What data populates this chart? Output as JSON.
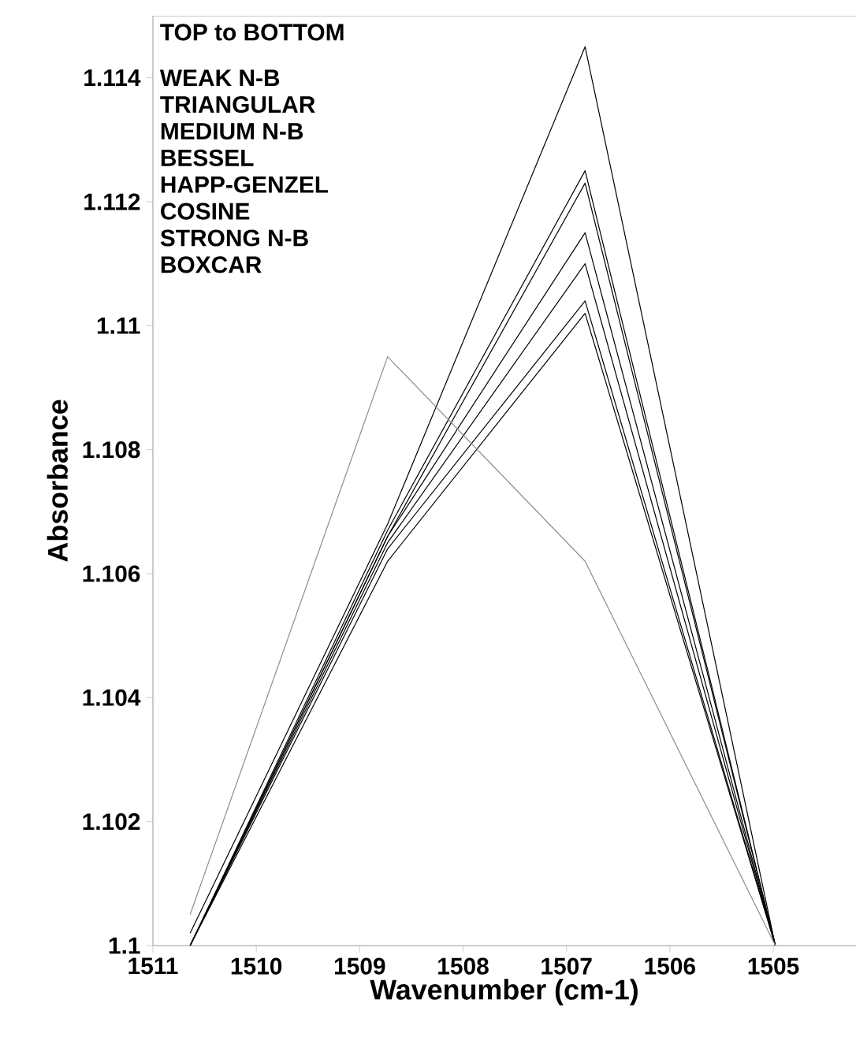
{
  "chart_data": {
    "type": "line",
    "xlabel": "Wavenumber (cm-1)",
    "ylabel": "Absorbance",
    "annotations": [
      "TOP to BOTTOM",
      "WEAK N-B",
      "TRIANGULAR",
      "MEDIUM N-B",
      "BESSEL",
      "HAPP-GENZEL",
      "COSINE",
      "STRONG N-B",
      "BOXCAR"
    ],
    "x": [
      1510.64,
      1508.73,
      1506.82,
      1504.98
    ],
    "series": [
      {
        "color": "#000000",
        "values": [
          1.1002,
          1.1068,
          1.1145,
          1.1
        ]
      },
      {
        "color": "#000000",
        "values": [
          1.1,
          1.1067,
          1.1125,
          1.1
        ]
      },
      {
        "color": "#000000",
        "values": [
          1.1,
          1.1066,
          1.1123,
          1.1
        ]
      },
      {
        "color": "#000000",
        "values": [
          1.1,
          1.1066,
          1.1115,
          1.1
        ]
      },
      {
        "color": "#000000",
        "values": [
          1.1,
          1.1065,
          1.111,
          1.1
        ]
      },
      {
        "color": "#000000",
        "values": [
          1.1,
          1.1064,
          1.1104,
          1.1
        ]
      },
      {
        "color": "#000000",
        "values": [
          1.1,
          1.1062,
          1.1102,
          1.1
        ]
      },
      {
        "color": "#8c8c8c",
        "values": [
          1.1005,
          1.1095,
          1.1062,
          1.1
        ]
      }
    ],
    "xlim": [
      1511,
      1504.2
    ],
    "ylim": [
      1.1,
      1.115
    ],
    "xticks": [
      1511,
      1510,
      1509,
      1508,
      1507,
      1506,
      1505
    ],
    "yticks": [
      1.1,
      1.102,
      1.104,
      1.106,
      1.108,
      1.11,
      1.112,
      1.114
    ],
    "grid": false
  }
}
